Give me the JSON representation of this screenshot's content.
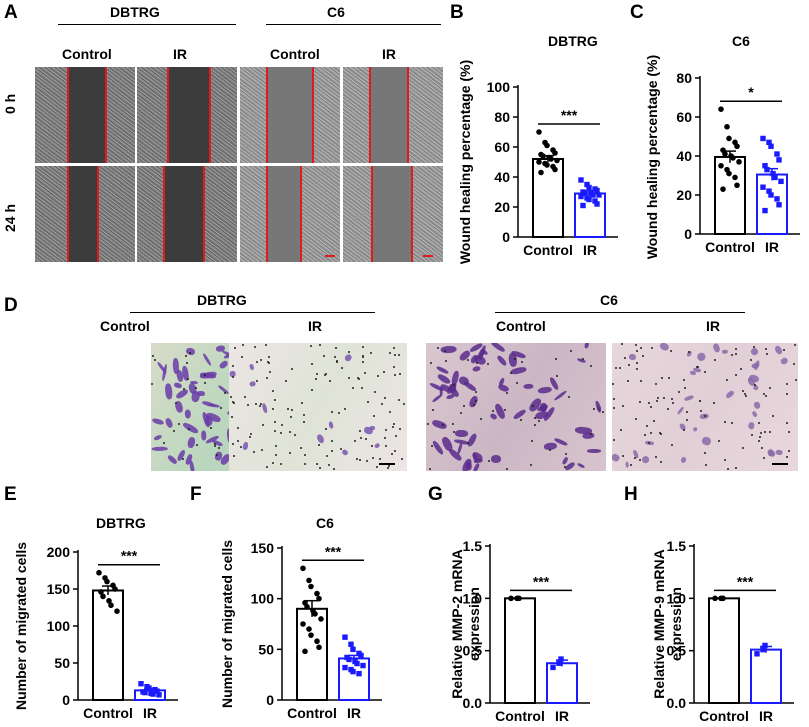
{
  "panels": {
    "A": {
      "letter": "A",
      "groups": [
        {
          "name": "DBTRG",
          "conditions": [
            "Control",
            "IR"
          ]
        },
        {
          "name": "C6",
          "conditions": [
            "Control",
            "IR"
          ]
        }
      ],
      "rows": [
        "0 h",
        "24 h"
      ]
    },
    "D": {
      "letter": "D",
      "groups": [
        {
          "name": "DBTRG",
          "conditions": [
            "Control",
            "IR"
          ]
        },
        {
          "name": "C6",
          "conditions": [
            "Control",
            "IR"
          ]
        }
      ]
    }
  },
  "colors": {
    "control": "#000000",
    "ir": "#1a1aff",
    "wound_edge": "#e01b1b"
  },
  "chart_data": [
    {
      "id": "B",
      "letter": "B",
      "type": "bar",
      "title": "DBTRG",
      "ylabel": "Wound healing percentage (%)",
      "ylim": [
        0,
        100
      ],
      "yticks": [
        0,
        20,
        40,
        60,
        80,
        100
      ],
      "categories": [
        "Control",
        "IR"
      ],
      "values": [
        52,
        29
      ],
      "errors": [
        2.2,
        1.8
      ],
      "points": [
        [
          70,
          63,
          61,
          58,
          56,
          55,
          54,
          53,
          52,
          51,
          50,
          49,
          48,
          47,
          45,
          43
        ],
        [
          38,
          35,
          33,
          32,
          31,
          30,
          29,
          29,
          28,
          28,
          27,
          26,
          25,
          24,
          22,
          21
        ]
      ],
      "significance": "***"
    },
    {
      "id": "C",
      "letter": "C",
      "type": "bar",
      "title": "C6",
      "ylabel": "Wound healing percentage (%)",
      "ylim": [
        0,
        80
      ],
      "yticks": [
        0,
        20,
        40,
        60,
        80
      ],
      "categories": [
        "Control",
        "IR"
      ],
      "values": [
        39.5,
        30.5
      ],
      "errors": [
        3.0,
        3.0
      ],
      "points": [
        [
          64,
          55,
          49,
          47,
          45,
          43,
          41,
          40,
          39,
          37,
          35,
          33,
          31,
          29,
          25,
          23
        ],
        [
          49,
          47,
          45,
          41,
          38,
          35,
          33,
          31,
          29,
          27,
          24,
          22,
          20,
          18,
          15,
          12
        ]
      ],
      "significance": "*"
    },
    {
      "id": "E",
      "letter": "E",
      "type": "bar",
      "title": "DBTRG",
      "ylabel": "Number of migrated cells",
      "ylim": [
        0,
        200
      ],
      "yticks": [
        0,
        50,
        100,
        150,
        200
      ],
      "categories": [
        "Control",
        "IR"
      ],
      "values": [
        148,
        13
      ],
      "errors": [
        6,
        2
      ],
      "points": [
        [
          172,
          165,
          160,
          155,
          150,
          146,
          140,
          134,
          128,
          120
        ],
        [
          22,
          18,
          16,
          14,
          12,
          11,
          10,
          9,
          8,
          7
        ]
      ],
      "significance": "***"
    },
    {
      "id": "F",
      "letter": "F",
      "type": "bar",
      "title": "C6",
      "ylabel": "Number of migrated cells",
      "ylim": [
        0,
        150
      ],
      "yticks": [
        0,
        50,
        100,
        150
      ],
      "categories": [
        "Control",
        "IR"
      ],
      "values": [
        90,
        41
      ],
      "errors": [
        8,
        3
      ],
      "points": [
        [
          130,
          118,
          112,
          105,
          100,
          96,
          92,
          88,
          85,
          80,
          75,
          70,
          64,
          58,
          52,
          48
        ],
        [
          62,
          55,
          50,
          46,
          44,
          42,
          40,
          38,
          36,
          34,
          32,
          30,
          28,
          26
        ]
      ],
      "significance": "***"
    },
    {
      "id": "G",
      "letter": "G",
      "type": "bar",
      "title": "",
      "ylabel": "Relative MMP-2 mRNA expression",
      "ylim": [
        0,
        1.5
      ],
      "yticks": [
        0.0,
        0.5,
        1.0,
        1.5
      ],
      "categories": [
        "Control",
        "IR"
      ],
      "values": [
        1.0,
        0.38
      ],
      "errors": [
        0,
        0.03
      ],
      "points": [
        [
          1.0,
          1.0,
          1.0
        ],
        [
          0.34,
          0.38,
          0.42
        ]
      ],
      "significance": "***"
    },
    {
      "id": "H",
      "letter": "H",
      "type": "bar",
      "title": "",
      "ylabel": "Relative MMP-9 mRNA expression",
      "ylim": [
        0,
        1.5
      ],
      "yticks": [
        0.0,
        0.5,
        1.0,
        1.5
      ],
      "categories": [
        "Control",
        "IR"
      ],
      "values": [
        1.0,
        0.51
      ],
      "errors": [
        0,
        0.03
      ],
      "points": [
        [
          1.0,
          1.0,
          1.0
        ],
        [
          0.47,
          0.51,
          0.55
        ]
      ],
      "significance": "***"
    }
  ]
}
